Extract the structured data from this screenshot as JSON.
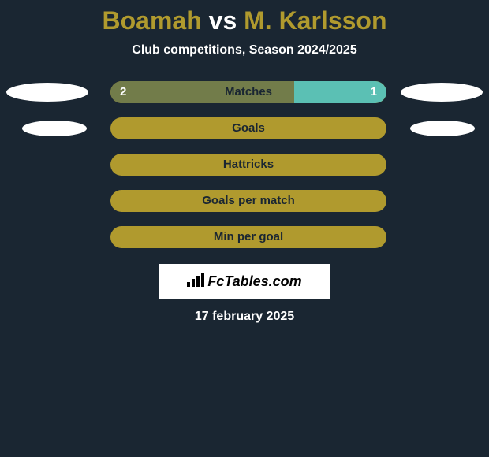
{
  "title": {
    "player1": "Boamah",
    "vs": "vs",
    "player2": "M. Karlsson",
    "player1_color": "#b09a2e",
    "vs_color": "#ffffff",
    "player2_color": "#b09a2e"
  },
  "subtitle": "Club competitions, Season 2024/2025",
  "background_color": "#1a2632",
  "bar_track_color": "#b09a2e",
  "ellipse_color": "#ffffff",
  "stats": [
    {
      "label": "Matches",
      "left_value": "2",
      "right_value": "1",
      "left_pct": 66.7,
      "right_pct": 33.3,
      "left_fill_color": "#727c4a",
      "right_fill_color": "#5bc0b4",
      "track_color": "#b09a2e",
      "ellipse_size": "large",
      "show_values": true
    },
    {
      "label": "Goals",
      "left_value": "",
      "right_value": "",
      "left_pct": 0,
      "right_pct": 0,
      "left_fill_color": "#727c4a",
      "right_fill_color": "#5bc0b4",
      "track_color": "#b09a2e",
      "ellipse_size": "small",
      "show_values": false
    },
    {
      "label": "Hattricks",
      "left_value": "",
      "right_value": "",
      "left_pct": 0,
      "right_pct": 0,
      "left_fill_color": "#727c4a",
      "right_fill_color": "#5bc0b4",
      "track_color": "#b09a2e",
      "ellipse_size": "none",
      "show_values": false
    },
    {
      "label": "Goals per match",
      "left_value": "",
      "right_value": "",
      "left_pct": 0,
      "right_pct": 0,
      "left_fill_color": "#727c4a",
      "right_fill_color": "#5bc0b4",
      "track_color": "#b09a2e",
      "ellipse_size": "none",
      "show_values": false
    },
    {
      "label": "Min per goal",
      "left_value": "",
      "right_value": "",
      "left_pct": 0,
      "right_pct": 0,
      "left_fill_color": "#727c4a",
      "right_fill_color": "#5bc0b4",
      "track_color": "#b09a2e",
      "ellipse_size": "none",
      "show_values": false
    }
  ],
  "logo": {
    "text": "FcTables.com",
    "icon": "bars-icon"
  },
  "date": "17 february 2025"
}
